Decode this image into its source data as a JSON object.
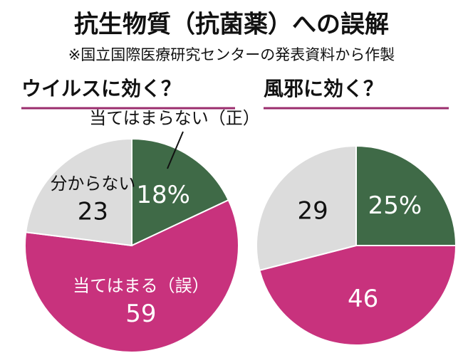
{
  "title": "抗生物質（抗菌薬）への誤解",
  "subtitle": "※国立国際医療研究センターの発表資料から作製",
  "chart_data": [
    {
      "type": "pie",
      "title": "ウイルスに効く？",
      "categories": [
        "当てはまらない（正）",
        "当てはまる（誤）",
        "分からない"
      ],
      "values": [
        18,
        59,
        23
      ],
      "value_labels": [
        "18%",
        "59",
        "23"
      ],
      "colors": [
        "#3f6a47",
        "#c8327d",
        "#dcdcdc"
      ]
    },
    {
      "type": "pie",
      "title": "風邪に効く？",
      "categories": [
        null,
        null,
        null
      ],
      "values": [
        25,
        46,
        29
      ],
      "value_labels": [
        "25%",
        "46",
        "29"
      ],
      "colors": [
        "#3f6a47",
        "#c8327d",
        "#dcdcdc"
      ]
    }
  ]
}
